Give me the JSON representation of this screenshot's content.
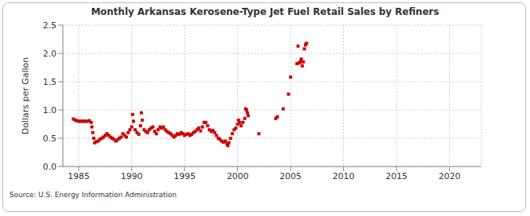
{
  "chart_data": {
    "type": "scatter",
    "title": "Monthly Arkansas Kerosene-Type Jet Fuel Retail Sales by Refiners",
    "y_label": "Dollars per Gallon",
    "source": "Source: U.S. Energy Information Administration",
    "color": "#cc0000",
    "marker": "square",
    "grid": true,
    "xlim": [
      1983.5,
      2023
    ],
    "xticks": [
      1985,
      1990,
      1995,
      2000,
      2005,
      2010,
      2015,
      2020
    ],
    "ylim": [
      0,
      2.5
    ],
    "yticks": [
      {
        "value": 0,
        "label": "0.0"
      },
      0.5,
      {
        "value": 1,
        "label": "1.0"
      },
      1.5,
      {
        "value": 2,
        "label": "2.0"
      },
      2.5
    ],
    "x": [
      1984.5,
      1984.67,
      1984.83,
      1985.0,
      1985.17,
      1985.33,
      1985.5,
      1985.67,
      1985.83,
      1986.0,
      1986.17,
      1986.25,
      1986.33,
      1986.42,
      1986.5,
      1986.67,
      1986.83,
      1987.0,
      1987.17,
      1987.33,
      1987.5,
      1987.67,
      1987.83,
      1988.0,
      1988.17,
      1988.33,
      1988.5,
      1988.67,
      1988.83,
      1989.0,
      1989.17,
      1989.33,
      1989.5,
      1989.67,
      1989.83,
      1990.0,
      1990.08,
      1990.17,
      1990.33,
      1990.5,
      1990.67,
      1990.83,
      1990.92,
      1991.0,
      1991.17,
      1991.33,
      1991.5,
      1991.67,
      1991.83,
      1992.0,
      1992.17,
      1992.33,
      1992.5,
      1992.67,
      1992.83,
      1993.0,
      1993.17,
      1993.33,
      1993.5,
      1993.67,
      1993.83,
      1994.0,
      1994.17,
      1994.33,
      1994.5,
      1994.67,
      1994.83,
      1995.0,
      1995.17,
      1995.33,
      1995.5,
      1995.67,
      1995.83,
      1996.0,
      1996.17,
      1996.33,
      1996.5,
      1996.67,
      1996.83,
      1997.0,
      1997.17,
      1997.33,
      1997.5,
      1997.67,
      1997.83,
      1998.0,
      1998.17,
      1998.33,
      1998.5,
      1998.67,
      1998.83,
      1999.0,
      1999.08,
      1999.17,
      1999.33,
      1999.5,
      1999.67,
      1999.83,
      2000.0,
      2000.08,
      2000.17,
      2000.33,
      2000.5,
      2000.67,
      2000.75,
      2000.83,
      2000.92,
      2001.0,
      2002.0,
      2003.6,
      2003.75,
      2004.3,
      2004.8,
      2005.0,
      2005.6,
      2005.7,
      2005.8,
      2005.9,
      2006.0,
      2006.1,
      2006.2,
      2006.3,
      2006.4,
      2006.5
    ],
    "values": [
      0.84,
      0.82,
      0.81,
      0.8,
      0.8,
      0.8,
      0.8,
      0.8,
      0.8,
      0.81,
      0.78,
      0.7,
      0.6,
      0.5,
      0.42,
      0.44,
      0.45,
      0.48,
      0.5,
      0.52,
      0.55,
      0.58,
      0.55,
      0.52,
      0.5,
      0.48,
      0.45,
      0.47,
      0.5,
      0.52,
      0.58,
      0.55,
      0.52,
      0.6,
      0.65,
      0.7,
      0.92,
      0.8,
      0.65,
      0.6,
      0.57,
      0.72,
      0.95,
      0.82,
      0.65,
      0.62,
      0.6,
      0.65,
      0.68,
      0.7,
      0.62,
      0.58,
      0.65,
      0.7,
      0.68,
      0.7,
      0.65,
      0.62,
      0.6,
      0.58,
      0.55,
      0.52,
      0.55,
      0.58,
      0.57,
      0.6,
      0.58,
      0.55,
      0.57,
      0.58,
      0.55,
      0.57,
      0.6,
      0.62,
      0.65,
      0.68,
      0.63,
      0.7,
      0.78,
      0.78,
      0.72,
      0.65,
      0.62,
      0.64,
      0.6,
      0.55,
      0.5,
      0.48,
      0.45,
      0.43,
      0.45,
      0.4,
      0.37,
      0.42,
      0.5,
      0.58,
      0.65,
      0.68,
      0.75,
      0.82,
      0.78,
      0.72,
      0.78,
      0.85,
      1.02,
      1.0,
      0.95,
      0.9,
      0.58,
      0.85,
      0.88,
      1.02,
      1.28,
      1.58,
      1.82,
      2.13,
      1.83,
      1.85,
      1.9,
      1.78,
      1.85,
      2.08,
      2.15,
      2.18
    ]
  }
}
